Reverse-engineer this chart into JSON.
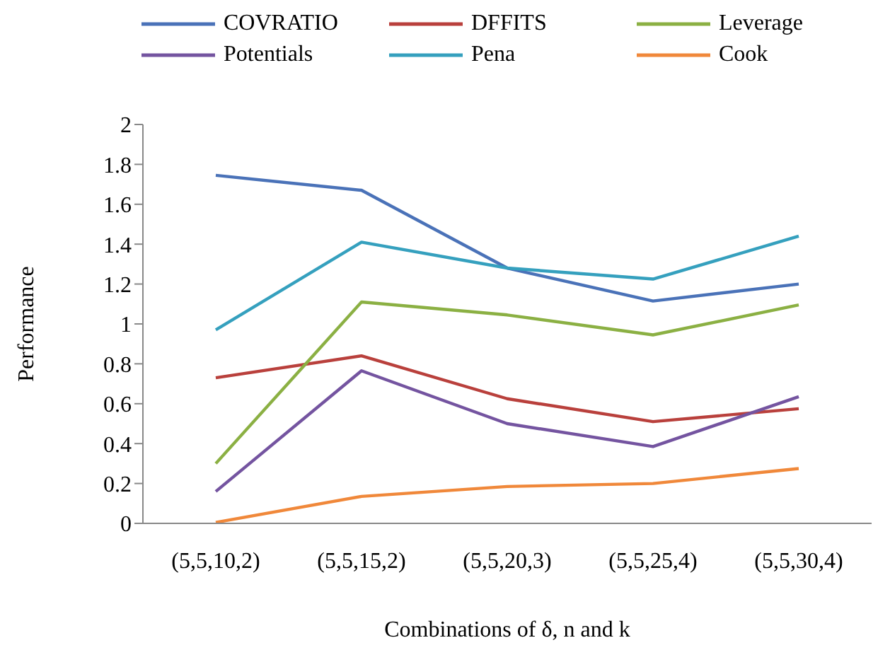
{
  "chart_data": {
    "type": "line",
    "xlabel": "Combinations of δ, n and k",
    "ylabel": "Performance",
    "categories": [
      "(5,5,10,2)",
      "(5,5,15,2)",
      "(5,5,20,3)",
      "(5,5,25,4)",
      "(5,5,30,4)"
    ],
    "series": [
      {
        "name": "COVRATIO",
        "color": "#4a72b8",
        "values": [
          1.745,
          1.67,
          1.28,
          1.115,
          1.2
        ]
      },
      {
        "name": "DFFITS",
        "color": "#b9403c",
        "values": [
          0.73,
          0.84,
          0.625,
          0.51,
          0.575
        ]
      },
      {
        "name": "Leverage",
        "color": "#8bb043",
        "values": [
          0.3,
          1.11,
          1.045,
          0.945,
          1.095
        ]
      },
      {
        "name": "Potentials",
        "color": "#7454a0",
        "values": [
          0.16,
          0.765,
          0.5,
          0.385,
          0.635
        ]
      },
      {
        "name": "Pena",
        "color": "#35a0be",
        "values": [
          0.97,
          1.41,
          1.28,
          1.225,
          1.44
        ]
      },
      {
        "name": "Cook",
        "color": "#f0883a",
        "values": [
          0.005,
          0.135,
          0.185,
          0.2,
          0.275
        ]
      }
    ],
    "ylim": [
      0,
      2
    ],
    "yticks": [
      0,
      0.2,
      0.4,
      0.6,
      0.8,
      1,
      1.2,
      1.4,
      1.6,
      1.8,
      2
    ],
    "grid": false,
    "legend": "top",
    "marker": "none",
    "line_style": "solid"
  }
}
